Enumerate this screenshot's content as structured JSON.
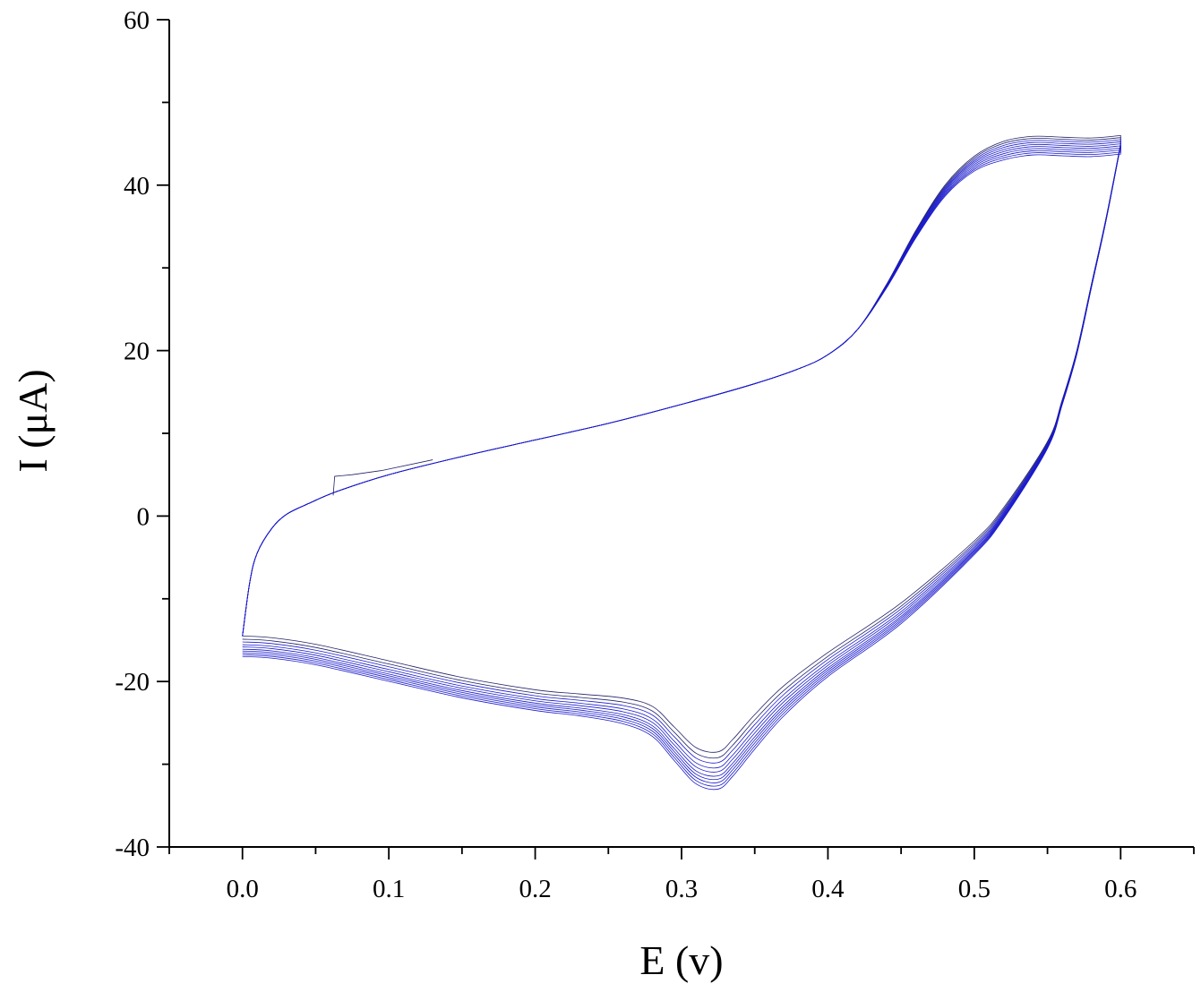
{
  "chart_data": {
    "type": "line",
    "title": "",
    "xlabel": "E (v)",
    "ylabel": "I (μA)",
    "xlim": [
      -0.05,
      0.65
    ],
    "ylim": [
      -40,
      60
    ],
    "x_ticks": [
      0.0,
      0.1,
      0.2,
      0.3,
      0.4,
      0.5,
      0.6
    ],
    "x_tick_labels": [
      "0.0",
      "0.1",
      "0.2",
      "0.3",
      "0.4",
      "0.5",
      "0.6"
    ],
    "x_minor_step": 0.05,
    "y_ticks": [
      -40,
      -20,
      0,
      20,
      40,
      60
    ],
    "y_tick_labels": [
      "-40",
      "-20",
      "0",
      "20",
      "40",
      "60"
    ],
    "y_minor_step": 10,
    "grid": false,
    "legend": "none",
    "frame": "left-bottom axes with right ticks",
    "colors": {
      "curve": "#1a1acc",
      "curve_dark": "#22226a",
      "axis": "#000000"
    },
    "cycles": 10,
    "anodic_branch": {
      "x": [
        0.0,
        0.005,
        0.01,
        0.02,
        0.03,
        0.045,
        0.065,
        0.1,
        0.15,
        0.2,
        0.25,
        0.3,
        0.35,
        0.38,
        0.4,
        0.42,
        0.44,
        0.46,
        0.48,
        0.5,
        0.52,
        0.54,
        0.56,
        0.58,
        0.6
      ],
      "y": [
        -14.5,
        -8,
        -4.5,
        -1.5,
        0.2,
        1.5,
        3.0,
        5.0,
        7.2,
        9.2,
        11.2,
        13.5,
        16.0,
        17.8,
        19.5,
        22.5,
        28,
        34.5,
        40,
        43.5,
        45.3,
        45.9,
        45.8,
        45.7,
        46.0
      ]
    },
    "cathodic_branch": {
      "x": [
        0.6,
        0.59,
        0.58,
        0.57,
        0.56,
        0.55,
        0.52,
        0.5,
        0.45,
        0.4,
        0.37,
        0.35,
        0.335,
        0.325,
        0.31,
        0.295,
        0.28,
        0.26,
        0.23,
        0.2,
        0.15,
        0.1,
        0.05,
        0.02,
        0.0
      ],
      "y": [
        45.0,
        36,
        28,
        20,
        14,
        9,
        1.0,
        -3.0,
        -10.5,
        -16.5,
        -20.5,
        -24.0,
        -27.0,
        -28.5,
        -28.0,
        -25.5,
        -23.0,
        -22.0,
        -21.5,
        -21.0,
        -19.5,
        -17.5,
        -15.5,
        -14.7,
        -14.5
      ]
    },
    "cycle_offsets_cathodic_peak": [
      0,
      -0.7,
      -1.3,
      -1.9,
      -2.4,
      -2.9,
      -3.3,
      -3.7,
      -4.1,
      -4.5
    ]
  }
}
